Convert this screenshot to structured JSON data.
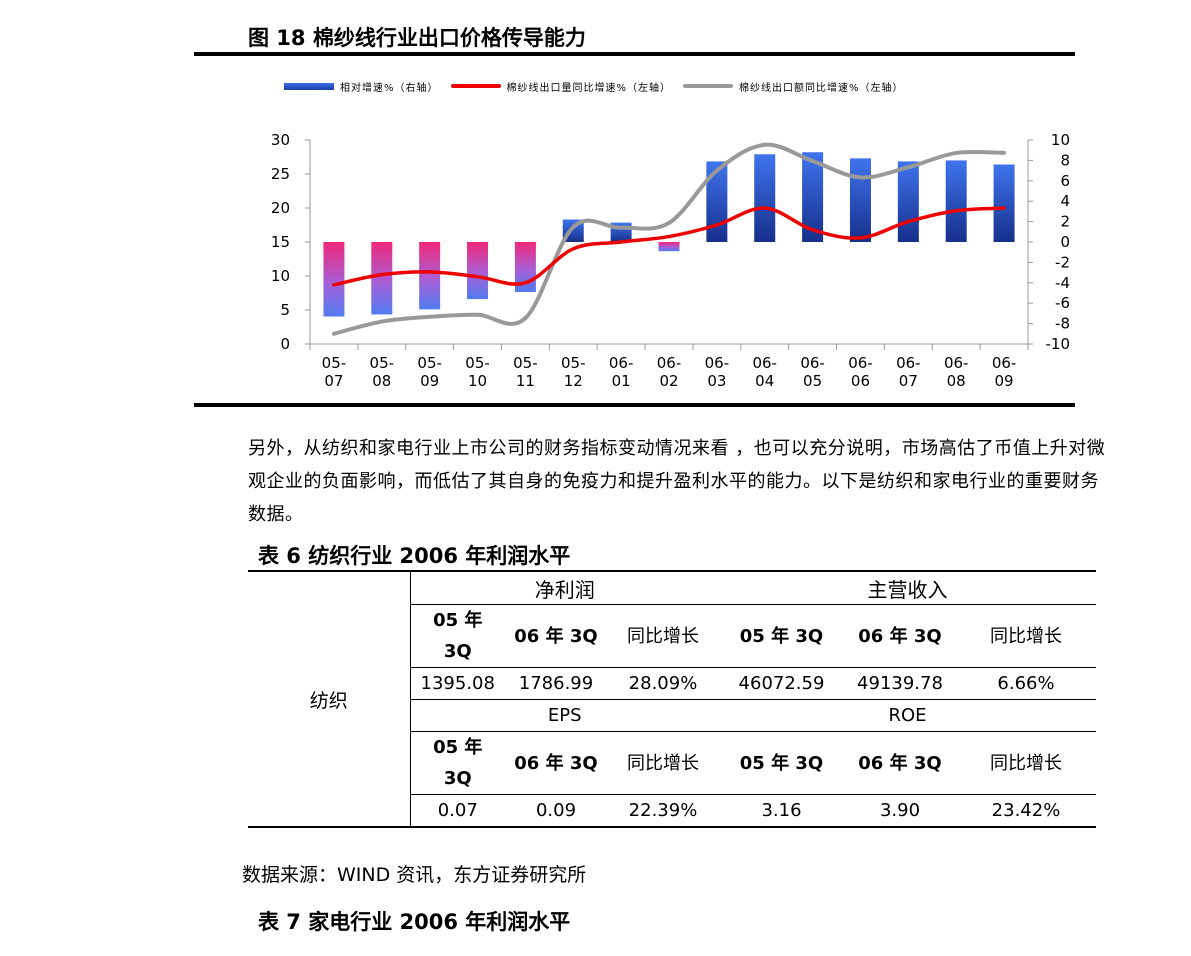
{
  "figure": {
    "title": "图 18  棉纱线行业出口价格传导能力",
    "legend": [
      {
        "label": "相对增速%（右轴）",
        "kind": "bar",
        "color": "#2f5fd8"
      },
      {
        "label": "棉纱线出口量同比增速%（左轴）",
        "kind": "line",
        "color": "#ee0000"
      },
      {
        "label": "棉纱线出口额同比增速%（左轴）",
        "kind": "line",
        "color": "#999999"
      }
    ]
  },
  "chart_data": {
    "type": "bar+line",
    "categories": [
      "05-07",
      "05-08",
      "05-09",
      "05-10",
      "05-11",
      "05-12",
      "06-01",
      "06-02",
      "06-03",
      "06-04",
      "06-05",
      "06-06",
      "06-07",
      "06-08",
      "06-09"
    ],
    "x_tick_top": [
      "05-",
      "05-",
      "05-",
      "05-",
      "05-",
      "05-",
      "06-",
      "06-",
      "06-",
      "06-",
      "06-",
      "06-",
      "06-",
      "06-",
      "06-"
    ],
    "x_tick_bottom": [
      "07",
      "08",
      "09",
      "10",
      "11",
      "12",
      "01",
      "02",
      "03",
      "04",
      "05",
      "06",
      "07",
      "08",
      "09"
    ],
    "left_axis": {
      "ylim": [
        0,
        30
      ],
      "ticks": [
        "0",
        "5",
        "10",
        "15",
        "20",
        "25",
        "30"
      ]
    },
    "right_axis": {
      "ylim": [
        -10,
        10
      ],
      "ticks": [
        "-10",
        "-8",
        "-6",
        "-4",
        "-2",
        "0",
        "2",
        "4",
        "6",
        "8",
        "10"
      ]
    },
    "series": [
      {
        "name": "相对增速%（右轴）",
        "axis": "right",
        "type": "bar",
        "values": [
          -7.3,
          -7.1,
          -6.6,
          -5.6,
          -4.9,
          2.2,
          1.9,
          -0.9,
          7.9,
          8.6,
          8.8,
          8.2,
          7.9,
          8.0,
          7.6
        ]
      },
      {
        "name": "棉纱线出口量同比增速%（左轴）",
        "axis": "left",
        "type": "line",
        "values": [
          8.7,
          10.2,
          10.6,
          9.9,
          9.0,
          14.0,
          15.0,
          15.8,
          17.5,
          20.0,
          16.8,
          15.6,
          18.0,
          19.6,
          20.0
        ]
      },
      {
        "name": "棉纱线出口额同比增速%（左轴）",
        "axis": "left",
        "type": "line",
        "values": [
          1.5,
          3.3,
          4.0,
          4.3,
          3.8,
          17.2,
          17.1,
          17.8,
          25.5,
          29.3,
          26.9,
          24.5,
          26.0,
          28.1,
          28.1
        ]
      }
    ]
  },
  "paragraph": "另外，从纺织和家电行业上市公司的财务指标变动情况来看 ，也可以充分说明，市场高估了币值上升对微观企业的负面影响，而低估了其自身的免疫力和提升盈利水平的能力。以下是纺织和家电行业的重要财务数据。",
  "table6": {
    "title": "表 6  纺织行业 2006 年利润水平",
    "row_label": "纺织",
    "group_headers": [
      "净利润",
      "主营收入"
    ],
    "sub_headers": [
      "05 年 3Q",
      "06 年 3Q",
      "同比增长",
      "05 年 3Q",
      "06 年 3Q",
      "同比增长"
    ],
    "values_row1": [
      "1395.08",
      "1786.99",
      "28.09%",
      "46072.59",
      "49139.78",
      "6.66%"
    ],
    "mid_headers": [
      "EPS",
      "ROE"
    ],
    "sub_headers_2": [
      "05 年 3Q",
      "06 年 3Q",
      "同比增长",
      "05 年 3Q",
      "06 年 3Q",
      "同比增长"
    ],
    "values_row2": [
      "0.07",
      "0.09",
      "22.39%",
      "3.16",
      "3.90",
      "23.42%"
    ]
  },
  "source": "数据来源：WIND 资讯，东方证券研究所",
  "table7_title": "表 7  家电行业 2006 年利润水平"
}
